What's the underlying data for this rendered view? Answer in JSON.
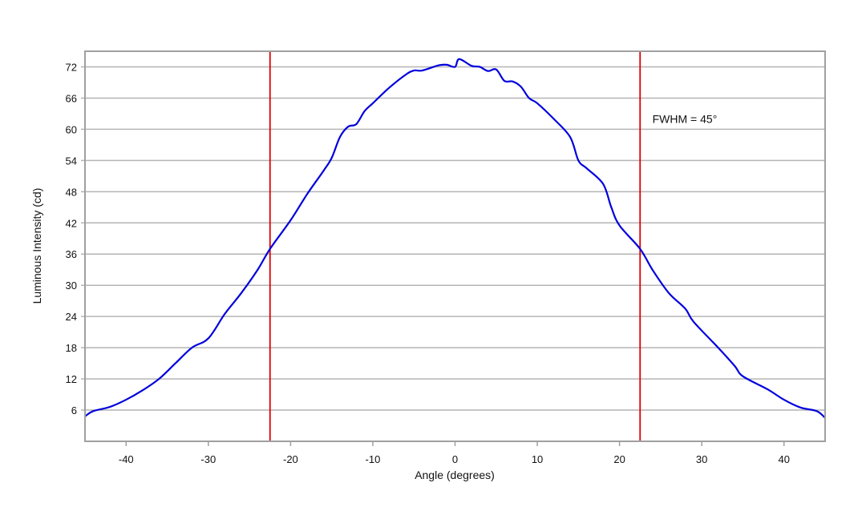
{
  "chart_data": {
    "type": "line",
    "title": "",
    "xlabel": "Angle (degrees)",
    "ylabel": "Luminous Intensity (cd)",
    "xlim": [
      -45,
      45
    ],
    "ylim": [
      0,
      75
    ],
    "x_ticks": [
      -40,
      -30,
      -20,
      -10,
      0,
      10,
      20,
      30,
      40
    ],
    "y_ticks": [
      6,
      12,
      18,
      24,
      30,
      36,
      42,
      48,
      54,
      60,
      66,
      72
    ],
    "grid": "horizontal",
    "series_color": "#0000dd",
    "marker_color": "#dd0000",
    "vertical_markers": [
      -22.5,
      22.5
    ],
    "annotation": {
      "text": "FWHM = 45°",
      "x": 24,
      "y": 62
    },
    "series": [
      {
        "x": [
          -45,
          -44,
          -42,
          -40,
          -38,
          -36,
          -34,
          -32,
          -30,
          -28,
          -26,
          -24,
          -22.5,
          -20,
          -18,
          -16,
          -15,
          -14,
          -13,
          -12,
          -11,
          -10,
          -8,
          -6,
          -5,
          -4,
          -2,
          -1,
          0,
          0.5,
          2,
          3,
          4,
          5,
          6,
          7,
          8,
          9,
          10,
          12,
          14,
          15,
          16,
          18,
          19,
          20,
          22.5,
          24,
          26,
          28,
          29,
          32,
          34,
          35,
          38,
          40,
          42,
          44,
          45
        ],
        "y": [
          4.8,
          5.8,
          6.6,
          8.0,
          9.8,
          12,
          15,
          18,
          19.8,
          24.5,
          28.5,
          33,
          37,
          42.5,
          47.5,
          52,
          54.5,
          58.5,
          60.5,
          61,
          63.5,
          65,
          68,
          70.5,
          71.3,
          71.3,
          72.3,
          72.4,
          72,
          73.5,
          72.2,
          72,
          71.2,
          71.5,
          69.3,
          69.2,
          68.2,
          66,
          65,
          62,
          58.5,
          54,
          52.5,
          49.5,
          45,
          41.5,
          37,
          33,
          28.5,
          25.5,
          23,
          18,
          14.5,
          12.5,
          10,
          8,
          6.5,
          5.8,
          4.5
        ]
      }
    ]
  }
}
